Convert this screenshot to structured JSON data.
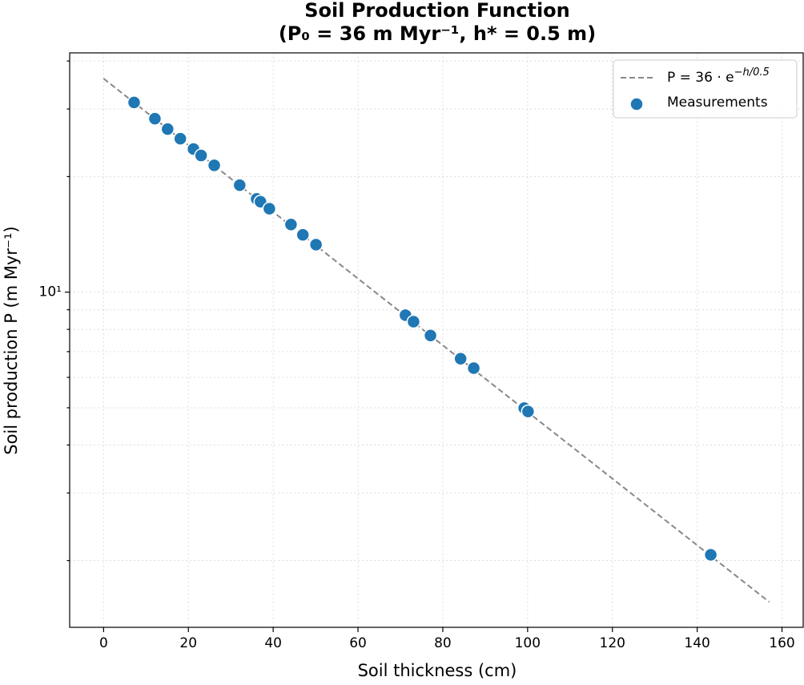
{
  "chart_data": {
    "type": "scatter",
    "title": "Soil Production Function",
    "subtitle": "(P₀ = 36 m Myr⁻¹, h* = 0.5 m)",
    "xlabel": "Soil thickness (cm)",
    "ylabel": "Soil production P (m Myr⁻¹)",
    "xlim": [
      -8,
      165
    ],
    "ylim": [
      1.34,
      42
    ],
    "log_y": true,
    "grid": true,
    "legend": "upper right",
    "xticks": [
      0,
      20,
      40,
      60,
      80,
      100,
      120,
      140,
      160
    ],
    "yticks": [
      {
        "value": 10,
        "label": "10¹"
      }
    ],
    "yminorticks": [
      2,
      3,
      4,
      5,
      6,
      7,
      8,
      9,
      20,
      30,
      40
    ],
    "fit": {
      "name": "P = 36 · e",
      "name_superscript": "−h/0.5",
      "color": "#888888",
      "x": [
        0,
        157
      ],
      "values": [
        36,
        1.56
      ]
    },
    "series": [
      {
        "name": "Measurements",
        "color": "#1f77b4",
        "x": [
          7.2,
          12.1,
          15.1,
          18.1,
          21.2,
          23.0,
          26.1,
          32.1,
          36.1,
          37.0,
          39.1,
          44.2,
          47.0,
          50.1,
          71.2,
          73.1,
          77.1,
          84.2,
          87.3,
          99.2,
          100.1,
          143.2
        ],
        "values": [
          31.2,
          28.3,
          26.6,
          25.1,
          23.6,
          22.7,
          21.4,
          19.0,
          17.5,
          17.2,
          16.5,
          15.0,
          14.1,
          13.3,
          8.71,
          8.38,
          7.71,
          6.71,
          6.34,
          4.99,
          4.89,
          2.07
        ]
      }
    ]
  }
}
